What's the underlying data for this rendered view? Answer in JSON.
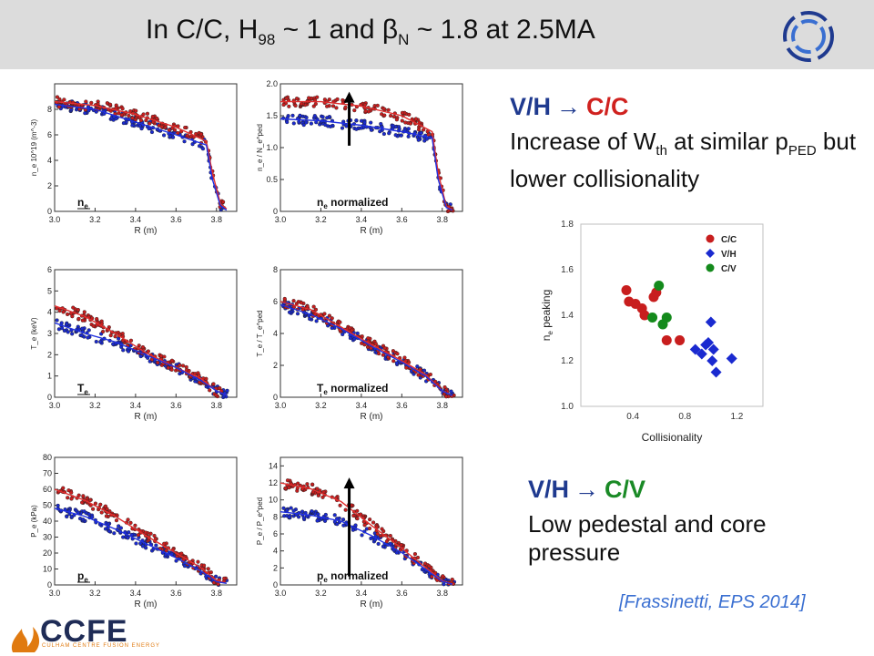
{
  "slide": {
    "title_main": "In C/C, H",
    "title_h_sub": "98",
    "title_mid": " ~ 1 and ",
    "title_beta": "β",
    "title_beta_sub": "N",
    "title_end": " ~ 1.8 at 2.5MA",
    "section1": {
      "from": "V/H",
      "arrow": "→",
      "to": "C/C",
      "line1_a": "Increase of W",
      "line1_sub": "th",
      "line1_b": " at similar p",
      "line1_sub2": "PED",
      "line1_c": " but",
      "line2": "lower collisionality"
    },
    "section2": {
      "from": "V/H",
      "arrow": "→",
      "to": "C/V",
      "line1": "Low pedestal and core",
      "line2": "pressure"
    },
    "citation": "[Frassinetti, EPS 2014]",
    "logo": {
      "word": "CCFE",
      "sub": "CULHAM CENTRE FUSION ENERGY",
      "icon": "ccfe-flame-icon"
    },
    "corner_logo_icon": "fusion-ring-icon"
  },
  "colors": {
    "red": "#c81e1e",
    "blue": "#1a2ad0",
    "green": "#148a1c",
    "fit_red": "#e03030",
    "fit_blue": "#2030e0"
  },
  "chart_data": [
    {
      "id": "ne",
      "type": "scatter",
      "label_main": "n",
      "label_sub": "e",
      "label_suffix": "",
      "xlabel": "R (m)",
      "ylabel": "n_e 10^19 (m^-3)",
      "xlim": [
        3.0,
        3.9
      ],
      "ylim": [
        0,
        10
      ],
      "xticks": [
        "3.0",
        "3.2",
        "3.4",
        "3.6",
        "3.8"
      ],
      "xtick_values": [
        3.0,
        3.2,
        3.4,
        3.6,
        3.8
      ],
      "yticks": [
        "0",
        "2",
        "4",
        "6",
        "8"
      ],
      "ytick_values": [
        0,
        2,
        4,
        6,
        8
      ],
      "series": [
        {
          "color": "red",
          "values_x": [
            3.0,
            3.2,
            3.4,
            3.6,
            3.75,
            3.78,
            3.82,
            3.85
          ],
          "values_y": [
            8.6,
            8.3,
            7.6,
            6.6,
            5.5,
            3.0,
            0.6,
            0.2
          ]
        },
        {
          "color": "blue",
          "values_x": [
            3.0,
            3.2,
            3.4,
            3.6,
            3.75,
            3.78,
            3.82,
            3.85
          ],
          "values_y": [
            8.4,
            8.0,
            7.0,
            6.0,
            5.2,
            2.5,
            0.4,
            0.1
          ]
        }
      ],
      "arrow": false
    },
    {
      "id": "ne_norm",
      "type": "scatter",
      "label_main": "n",
      "label_sub": "e",
      "label_suffix": " normalized",
      "xlabel": "R (m)",
      "ylabel": "n_e / N_e^ped",
      "xlim": [
        3.0,
        3.9
      ],
      "ylim": [
        0,
        2.0
      ],
      "xticks": [
        "3.0",
        "3.2",
        "3.4",
        "3.6",
        "3.8"
      ],
      "xtick_values": [
        3.0,
        3.2,
        3.4,
        3.6,
        3.8
      ],
      "yticks": [
        "0",
        "0.5",
        "1.0",
        "1.5",
        "2.0"
      ],
      "ytick_values": [
        0,
        0.5,
        1.0,
        1.5,
        2.0
      ],
      "series": [
        {
          "color": "red",
          "values_x": [
            3.0,
            3.2,
            3.4,
            3.6,
            3.75,
            3.78,
            3.82,
            3.85
          ],
          "values_y": [
            1.72,
            1.72,
            1.65,
            1.5,
            1.25,
            0.6,
            0.08,
            0.02
          ]
        },
        {
          "color": "blue",
          "values_x": [
            3.0,
            3.2,
            3.4,
            3.6,
            3.75,
            3.78,
            3.82,
            3.85
          ],
          "values_y": [
            1.45,
            1.42,
            1.35,
            1.25,
            1.15,
            0.5,
            0.06,
            0.02
          ]
        }
      ],
      "arrow": true
    },
    {
      "id": "te",
      "type": "scatter",
      "label_main": "T",
      "label_sub": "e",
      "label_suffix": "",
      "xlabel": "R (m)",
      "ylabel": "T_e (keV)",
      "xlim": [
        3.0,
        3.9
      ],
      "ylim": [
        0,
        6
      ],
      "xticks": [
        "3.0",
        "3.2",
        "3.4",
        "3.6",
        "3.8"
      ],
      "xtick_values": [
        3.0,
        3.2,
        3.4,
        3.6,
        3.8
      ],
      "yticks": [
        "0",
        "1",
        "2",
        "3",
        "4",
        "5",
        "6"
      ],
      "ytick_values": [
        0,
        1,
        2,
        3,
        4,
        5,
        6
      ],
      "series": [
        {
          "color": "red",
          "values_x": [
            3.0,
            3.15,
            3.3,
            3.45,
            3.6,
            3.72,
            3.8,
            3.85
          ],
          "values_y": [
            4.3,
            3.8,
            3.0,
            2.1,
            1.4,
            0.9,
            0.3,
            0.1
          ]
        },
        {
          "color": "blue",
          "values_x": [
            3.0,
            3.15,
            3.3,
            3.45,
            3.6,
            3.72,
            3.8,
            3.85
          ],
          "values_y": [
            3.5,
            3.0,
            2.6,
            2.0,
            1.4,
            0.8,
            0.3,
            0.1
          ]
        }
      ],
      "arrow": false
    },
    {
      "id": "te_norm",
      "type": "scatter",
      "label_main": "T",
      "label_sub": "e",
      "label_suffix": " normalized",
      "xlabel": "R (m)",
      "ylabel": "T_e / T_e^ped",
      "xlim": [
        3.0,
        3.9
      ],
      "ylim": [
        0,
        8
      ],
      "xticks": [
        "3.0",
        "3.2",
        "3.4",
        "3.6",
        "3.8"
      ],
      "xtick_values": [
        3.0,
        3.2,
        3.4,
        3.6,
        3.8
      ],
      "yticks": [
        "0",
        "2",
        "4",
        "6",
        "8"
      ],
      "ytick_values": [
        0,
        2,
        4,
        6,
        8
      ],
      "series": [
        {
          "color": "red",
          "values_x": [
            3.0,
            3.15,
            3.3,
            3.45,
            3.6,
            3.72,
            3.8,
            3.85
          ],
          "values_y": [
            6.0,
            5.5,
            4.4,
            3.3,
            2.3,
            1.4,
            0.4,
            0.1
          ]
        },
        {
          "color": "blue",
          "values_x": [
            3.0,
            3.15,
            3.3,
            3.45,
            3.6,
            3.72,
            3.8,
            3.85
          ],
          "values_y": [
            5.8,
            5.2,
            4.3,
            3.2,
            2.2,
            1.3,
            0.4,
            0.1
          ]
        }
      ],
      "arrow": false
    },
    {
      "id": "pe",
      "type": "scatter",
      "label_main": "p",
      "label_sub": "e",
      "label_suffix": "",
      "xlabel": "R (m)",
      "ylabel": "P_e (kPa)",
      "xlim": [
        3.0,
        3.9
      ],
      "ylim": [
        0,
        80
      ],
      "xticks": [
        "3.0",
        "3.2",
        "3.4",
        "3.6",
        "3.8"
      ],
      "xtick_values": [
        3.0,
        3.2,
        3.4,
        3.6,
        3.8
      ],
      "yticks": [
        "0",
        "10",
        "20",
        "30",
        "40",
        "50",
        "60",
        "70",
        "80"
      ],
      "ytick_values": [
        0,
        10,
        20,
        30,
        40,
        50,
        60,
        70,
        80
      ],
      "series": [
        {
          "color": "red",
          "values_x": [
            3.0,
            3.15,
            3.3,
            3.45,
            3.6,
            3.72,
            3.8,
            3.85
          ],
          "values_y": [
            60,
            53,
            43,
            31,
            20,
            11,
            3,
            1
          ]
        },
        {
          "color": "blue",
          "values_x": [
            3.0,
            3.15,
            3.3,
            3.45,
            3.6,
            3.72,
            3.8,
            3.85
          ],
          "values_y": [
            48,
            43,
            35,
            26,
            17,
            9,
            2,
            1
          ]
        }
      ],
      "arrow": false
    },
    {
      "id": "pe_norm",
      "type": "scatter",
      "label_main": "p",
      "label_sub": "e",
      "label_suffix": " normalized",
      "xlabel": "R (m)",
      "ylabel": "P_e / P_e^ped",
      "xlim": [
        3.0,
        3.9
      ],
      "ylim": [
        0,
        15
      ],
      "xticks": [
        "3.0",
        "3.2",
        "3.4",
        "3.6",
        "3.8"
      ],
      "xtick_values": [
        3.0,
        3.2,
        3.4,
        3.6,
        3.8
      ],
      "yticks": [
        "0",
        "2",
        "4",
        "6",
        "8",
        "10",
        "12",
        "14"
      ],
      "ytick_values": [
        0,
        2,
        4,
        6,
        8,
        10,
        12,
        14
      ],
      "series": [
        {
          "color": "red",
          "values_x": [
            3.0,
            3.15,
            3.3,
            3.45,
            3.6,
            3.72,
            3.8,
            3.85
          ],
          "values_y": [
            12.0,
            11.3,
            9.8,
            7.0,
            4.3,
            2.0,
            0.5,
            0.1
          ]
        },
        {
          "color": "blue",
          "values_x": [
            3.0,
            3.15,
            3.3,
            3.45,
            3.6,
            3.72,
            3.8,
            3.85
          ],
          "values_y": [
            8.6,
            8.2,
            7.5,
            5.8,
            3.8,
            1.8,
            0.4,
            0.1
          ]
        }
      ],
      "arrow": true
    },
    {
      "id": "peaking",
      "type": "scatter",
      "xlabel": "Collisionality",
      "ylabel_main": "n",
      "ylabel_sub": "e",
      "ylabel_suffix": " peaking",
      "xlim": [
        0.0,
        1.4
      ],
      "ylim": [
        1.0,
        1.8
      ],
      "xticks": [
        "0.4",
        "0.8",
        "1.2"
      ],
      "xtick_values": [
        0.4,
        0.8,
        1.2
      ],
      "yticks": [
        "1.0",
        "1.2",
        "1.4",
        "1.6",
        "1.8"
      ],
      "ytick_values": [
        1.0,
        1.2,
        1.4,
        1.6,
        1.8
      ],
      "legend": [
        {
          "name": "C/C",
          "color": "red",
          "marker": "circle"
        },
        {
          "name": "V/H",
          "color": "blue",
          "marker": "diamond"
        },
        {
          "name": "C/V",
          "color": "green",
          "marker": "circle"
        }
      ],
      "series": [
        {
          "name": "C/C",
          "color": "red",
          "marker": "circle",
          "x": [
            0.35,
            0.37,
            0.42,
            0.47,
            0.49,
            0.56,
            0.58,
            0.66,
            0.76
          ],
          "y": [
            1.51,
            1.46,
            1.45,
            1.43,
            1.4,
            1.48,
            1.5,
            1.29,
            1.29
          ]
        },
        {
          "name": "V/H",
          "color": "blue",
          "marker": "diamond",
          "x": [
            0.88,
            0.93,
            0.96,
            0.98,
            1.0,
            1.01,
            1.02,
            1.04,
            1.16
          ],
          "y": [
            1.25,
            1.23,
            1.27,
            1.28,
            1.37,
            1.2,
            1.25,
            1.15,
            1.21
          ]
        },
        {
          "name": "C/V",
          "color": "green",
          "marker": "circle",
          "x": [
            0.55,
            0.6,
            0.63,
            0.66
          ],
          "y": [
            1.39,
            1.53,
            1.36,
            1.39
          ]
        }
      ]
    }
  ]
}
